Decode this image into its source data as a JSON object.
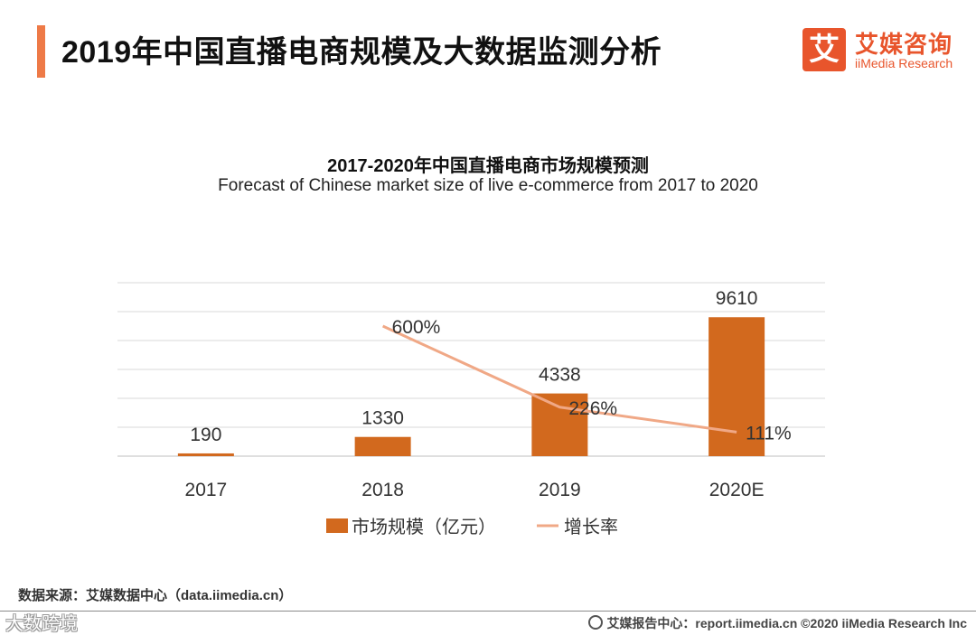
{
  "header": {
    "title": "2019年中国直播电商规模及大数据监测分析"
  },
  "logo": {
    "mark_char": "艾",
    "name_cn": "艾媒咨询",
    "name_en": "iiMedia Research"
  },
  "colors": {
    "accent": "#ee7a47",
    "bar": "#d2691e",
    "line": "#f0a886",
    "grid": "#d9d9d9"
  },
  "chart_data": {
    "type": "bar",
    "title": "2017-2020年中国直播电商市场规模预测",
    "subtitle": "Forecast of Chinese market size of live e-commerce from 2017 to 2020",
    "categories": [
      "2017",
      "2018",
      "2019",
      "2020E"
    ],
    "series": [
      {
        "name": "市场规模（亿元）",
        "type": "bar",
        "values": [
          190,
          1330,
          4338,
          9610
        ],
        "labels": [
          "190",
          "1330",
          "4338",
          "9610"
        ]
      },
      {
        "name": "增长率",
        "type": "line",
        "values": [
          null,
          600,
          226,
          111
        ],
        "labels": [
          "",
          "600%",
          "226%",
          "111%"
        ]
      }
    ],
    "ylim": [
      0,
      12000
    ],
    "y2lim": [
      0,
      800
    ],
    "grid": true,
    "legend": "bottom"
  },
  "footer": {
    "source": "数据来源：艾媒数据中心（data.iimedia.cn）",
    "report": "艾媒报告中心：report.iimedia.cn   ©2020  iiMedia Research  Inc",
    "watermark": "大数跨境"
  }
}
